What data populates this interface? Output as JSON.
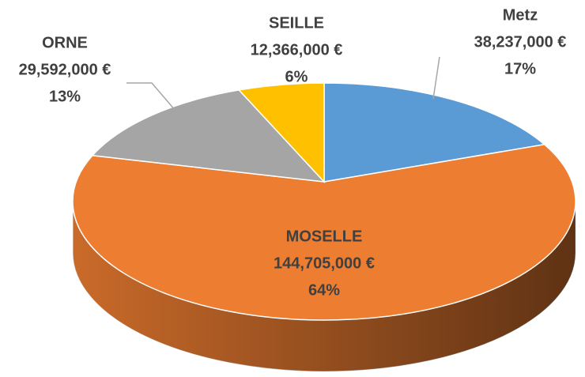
{
  "chart_data": {
    "type": "pie",
    "categories": [
      "Metz",
      "MOSELLE",
      "ORNE",
      "SEILLE"
    ],
    "values": [
      38237000,
      144705000,
      29592000,
      12366000
    ],
    "value_labels": [
      "38,237,000 €",
      "144,705,000 €",
      "29,592,000 €",
      "12,366,000 €"
    ],
    "percent_labels": [
      "17%",
      "64%",
      "13%",
      "6%"
    ],
    "colors": [
      "#5b9bd5",
      "#ed7d31",
      "#a5a5a5",
      "#ffc000"
    ]
  }
}
